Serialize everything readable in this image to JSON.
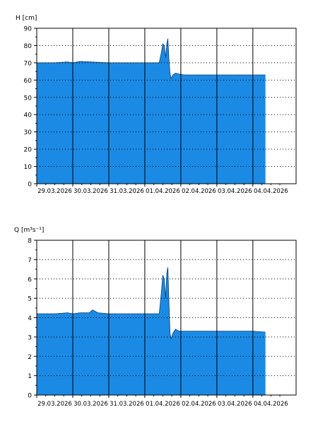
{
  "chart_data": [
    {
      "type": "area",
      "ylabel": "H [cm]",
      "ylim": [
        0,
        90
      ],
      "yticks": [
        0,
        10,
        20,
        30,
        40,
        50,
        60,
        70,
        80,
        90
      ],
      "xticks": [
        "29.03.2026",
        "30.03.2026",
        "31.03.2026",
        "01.04.2026",
        "02.04.2026",
        "03.04.2026",
        "04.04.2026"
      ],
      "xlim": [
        0,
        7.2
      ],
      "grid": true,
      "fill_color": "#1b8ae4",
      "series": [
        {
          "x": [
            0,
            0.5,
            0.85,
            1.0,
            1.2,
            1.5,
            2.0,
            2.5,
            3.0,
            3.2,
            3.3,
            3.4,
            3.46,
            3.5,
            3.54,
            3.58,
            3.61,
            3.64,
            3.67,
            3.7,
            3.73,
            3.78,
            3.85,
            3.95,
            4.1,
            4.5,
            5.0,
            5.5,
            6.0,
            6.35
          ],
          "y": [
            70,
            70,
            70.5,
            70,
            70.8,
            70.5,
            70,
            70,
            70,
            70,
            70,
            70,
            76,
            81,
            80,
            73,
            81,
            84,
            72,
            64,
            61,
            63,
            64,
            63.5,
            63,
            63,
            63,
            63,
            63,
            63
          ]
        }
      ]
    },
    {
      "type": "area",
      "ylabel": "Q [m³s⁻¹]",
      "ylim": [
        0,
        8
      ],
      "yticks": [
        0,
        1,
        2,
        3,
        4,
        5,
        6,
        7,
        8
      ],
      "xticks": [
        "29.03.2026",
        "30.03.2026",
        "31.03.2026",
        "01.04.2026",
        "02.04.2026",
        "03.04.2026",
        "04.04.2026"
      ],
      "xlim": [
        0,
        7.2
      ],
      "grid": true,
      "fill_color": "#1b8ae4",
      "series": [
        {
          "x": [
            0,
            0.5,
            0.85,
            1.0,
            1.2,
            1.45,
            1.55,
            1.7,
            2.0,
            2.5,
            3.0,
            3.2,
            3.3,
            3.4,
            3.46,
            3.5,
            3.54,
            3.58,
            3.61,
            3.64,
            3.67,
            3.7,
            3.73,
            3.78,
            3.85,
            3.95,
            4.1,
            4.5,
            5.0,
            5.5,
            6.0,
            6.35
          ],
          "y": [
            4.2,
            4.2,
            4.25,
            4.2,
            4.25,
            4.25,
            4.4,
            4.25,
            4.2,
            4.2,
            4.2,
            4.2,
            4.2,
            4.2,
            5.3,
            6.2,
            6.0,
            5.0,
            6.3,
            6.6,
            4.8,
            3.2,
            2.9,
            3.2,
            3.4,
            3.3,
            3.3,
            3.3,
            3.3,
            3.3,
            3.3,
            3.25
          ]
        }
      ]
    }
  ]
}
